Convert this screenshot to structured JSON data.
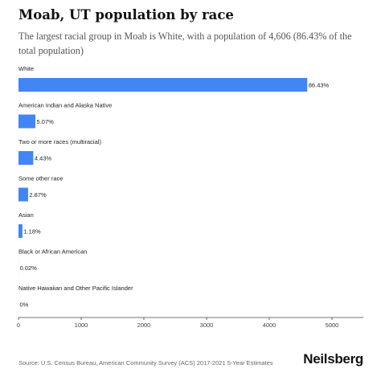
{
  "title": "Moab, UT population by race",
  "subtitle": "The largest racial group in Moab is White, with a population of 4,606 (86.43% of the total population)",
  "source": "Source: U.S. Census Bureau, American Community Survey (ACS) 2017-2021 5-Year Estimates",
  "brand": "Neilsberg",
  "colors": {
    "bar": "#4285f4",
    "axis": "#444444",
    "text": "#222222"
  },
  "chart_data": {
    "type": "bar",
    "orientation": "horizontal",
    "categories": [
      "White",
      "American Indian and Alaska Native",
      "Two or more races (multiracial)",
      "Some other race",
      "Asian",
      "Black or African American",
      "Native Hawaiian and Other Pacific Islander"
    ],
    "values": [
      4606,
      270,
      236,
      153,
      63,
      1,
      0
    ],
    "data_labels": [
      "86.43%",
      "5.07%",
      "4.43%",
      "2.87%",
      "1.18%",
      "0.02%",
      "0%"
    ],
    "xlim": [
      0,
      5500
    ],
    "xticks": [
      0,
      1000,
      2000,
      3000,
      4000,
      5000
    ],
    "grid": false,
    "legend": "none"
  }
}
